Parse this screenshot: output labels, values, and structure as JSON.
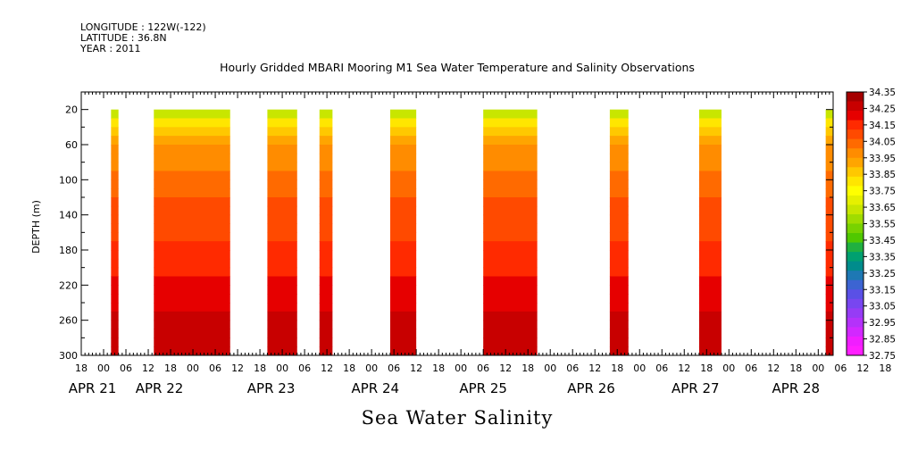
{
  "header": {
    "longitude": "LONGITUDE : 122W(-122)",
    "latitude": "LATITUDE : 36.8N",
    "year": "YEAR : 2011"
  },
  "chart_data": {
    "type": "heatmap",
    "title": "Hourly Gridded MBARI Mooring M1 Sea Water Temperature and Salinity Observations",
    "xlabel": "Sea Water Salinity",
    "ylabel": "DEPTH (m)",
    "x_unit": "hours since 2011-04-21 00:00",
    "xlim": [
      -6,
      196
    ],
    "ylim": [
      300,
      0
    ],
    "yticks": [
      20,
      60,
      100,
      140,
      180,
      220,
      260,
      300
    ],
    "xtick_hours": [
      "18",
      "00",
      "06",
      "12",
      "18",
      "00",
      "06",
      "12",
      "18",
      "00",
      "06",
      "12",
      "18",
      "00",
      "06",
      "12",
      "18",
      "00",
      "06",
      "12",
      "18",
      "00",
      "06",
      "12",
      "18",
      "00",
      "06",
      "12",
      "18",
      "00",
      "06",
      "12",
      "18",
      "00",
      "06",
      "12",
      "18"
    ],
    "date_labels": [
      {
        "hour": -3,
        "label": "APR 21"
      },
      {
        "hour": 15,
        "label": "APR 22"
      },
      {
        "hour": 45,
        "label": "APR 23"
      },
      {
        "hour": 73,
        "label": "APR 24"
      },
      {
        "hour": 102,
        "label": "APR 25"
      },
      {
        "hour": 131,
        "label": "APR 26"
      },
      {
        "hour": 159,
        "label": "APR 27"
      },
      {
        "hour": 186,
        "label": "APR 28"
      }
    ],
    "colorbar": {
      "labels": [
        "34.35",
        "34.25",
        "34.15",
        "34.05",
        "33.95",
        "33.85",
        "33.75",
        "33.65",
        "33.55",
        "33.45",
        "33.35",
        "33.25",
        "33.15",
        "33.05",
        "32.95",
        "32.85",
        "32.75"
      ],
      "colors": [
        "#a50000",
        "#c80000",
        "#e60000",
        "#ff2a00",
        "#ff4a00",
        "#ff6a00",
        "#ff8c00",
        "#ffa500",
        "#ffc800",
        "#ffe600",
        "#ffff00",
        "#e6f000",
        "#c8e600",
        "#a0dc00",
        "#78d200",
        "#50c800",
        "#20b040",
        "#00a070",
        "#008c8c",
        "#1e78b4",
        "#3c64d2",
        "#5a50e6",
        "#7846f0",
        "#963cf5",
        "#b432fa",
        "#d228ff",
        "#f01eff",
        "#ff1eff"
      ]
    },
    "segments": [
      {
        "start": 2,
        "end": 4
      },
      {
        "start": 13.5,
        "end": 34
      },
      {
        "start": 44,
        "end": 52
      },
      {
        "start": 58,
        "end": 61.5
      },
      {
        "start": 77,
        "end": 84
      },
      {
        "start": 102,
        "end": 116.5
      },
      {
        "start": 136,
        "end": 141
      },
      {
        "start": 160,
        "end": 166
      },
      {
        "start": 194,
        "end": 196
      }
    ],
    "depth_profile": [
      {
        "depth": 20,
        "value": 33.55
      },
      {
        "depth": 30,
        "value": 33.75
      },
      {
        "depth": 45,
        "value": 33.88
      },
      {
        "depth": 65,
        "value": 33.97
      },
      {
        "depth": 100,
        "value": 34.03
      },
      {
        "depth": 130,
        "value": 34.08
      },
      {
        "depth": 170,
        "value": 34.12
      },
      {
        "depth": 210,
        "value": 34.17
      },
      {
        "depth": 245,
        "value": 34.23
      },
      {
        "depth": 275,
        "value": 34.26
      },
      {
        "depth": 300,
        "value": 34.28
      }
    ]
  }
}
